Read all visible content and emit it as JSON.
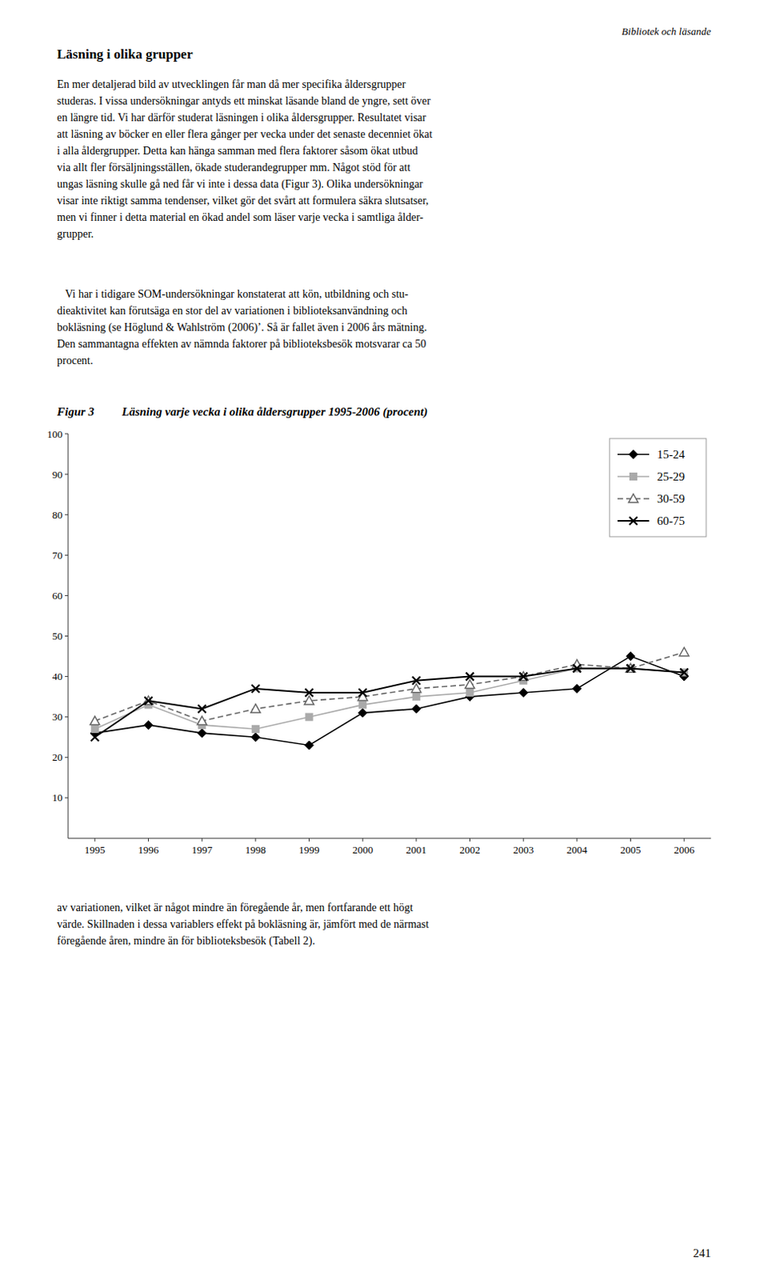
{
  "page": {
    "header": "Bibliotek och läsande",
    "heading": "Läsning i olika grupper",
    "body1": [
      "En mer detaljerad bild av utvecklingen får man då mer specifika åldersgrupper",
      "studeras. I vissa undersökningar antyds ett minskat läsande bland de yngre, sett över",
      "en längre tid. Vi har därför studerat läsningen i olika åldersgrupper. Resultatet visar",
      "att läsning av böcker en eller flera gånger per vecka under det senaste decenniet ökat",
      "i alla åldergrupper. Detta kan hänga samman med flera faktorer såsom ökat utbud",
      "via allt fler försäljningsställen, ökade studerandegrupper mm. Något stöd för att",
      "ungas läsning skulle gå ned får vi inte i dessa data (Figur 3). Olika undersökningar",
      "visar inte riktigt samma tendenser, vilket gör det svårt att formulera säkra slutsatser,",
      "men vi finner i detta material en ökad andel som läser varje vecka i samtliga ålder-",
      "grupper."
    ],
    "body2": [
      "   Vi har i tidigare SOM-undersökningar konstaterat att kön, utbildning och stu-",
      "dieaktivitet kan förutsäga en stor del av variationen i biblioteksanvändning och",
      "bokläsning (se Höglund & Wahlström (2006)’. Så är fallet även i 2006 års mätning.",
      "Den sammantagna effekten av nämnda faktorer på biblioteksbesök motsvarar ca 50",
      "procent."
    ],
    "caption_label": "Figur 3",
    "bottom_text": [
      "av variationen, vilket är något mindre än föregående år, men fortfarande ett högt",
      "värde. Skillnaden i dessa variablers effekt på bokläsning är, jämfört med de närmast",
      "föregående åren, mindre än för biblioteksbesök (Tabell 2)."
    ],
    "page_number": "241"
  },
  "chart_data": {
    "type": "line",
    "title": "Läsning varje vecka i olika åldersgrupper 1995-2006 (procent)",
    "x": [
      1995,
      1996,
      1997,
      1998,
      1999,
      2000,
      2001,
      2002,
      2003,
      2004,
      2005,
      2006
    ],
    "xlim": [
      1994.5,
      2006.5
    ],
    "xticks": [
      1995,
      1996,
      1997,
      1998,
      1999,
      2000,
      2001,
      2002,
      2003,
      2004,
      2005,
      2006
    ],
    "ylim": [
      0,
      100
    ],
    "yticks": [
      10,
      20,
      30,
      40,
      50,
      60,
      70,
      80,
      90,
      100
    ],
    "grid": false,
    "legend": "upper-right",
    "series": [
      {
        "name": "15-24",
        "color": "#000000",
        "marker": "diamond",
        "line_style": "solid",
        "values": [
          26,
          28,
          26,
          25,
          23,
          31,
          32,
          35,
          36,
          37,
          45,
          40
        ]
      },
      {
        "name": "25-29",
        "color": "#aaaaaa",
        "marker": "square",
        "line_style": "solid",
        "values": [
          27,
          33,
          28,
          27,
          30,
          33,
          35,
          36,
          39,
          42,
          42,
          41
        ]
      },
      {
        "name": "30-59",
        "color": "#666666",
        "marker": "triangle",
        "line_style": "dashed",
        "values": [
          29,
          34,
          29,
          32,
          34,
          35,
          37,
          38,
          40,
          43,
          42,
          46
        ]
      },
      {
        "name": "60-75",
        "color": "#000000",
        "marker": "x",
        "line_style": "solid",
        "values": [
          25,
          34,
          32,
          37,
          36,
          36,
          39,
          40,
          40,
          42,
          42,
          41
        ]
      }
    ]
  }
}
